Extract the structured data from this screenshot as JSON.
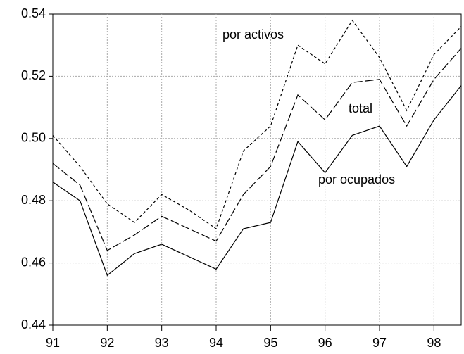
{
  "chart_data": {
    "type": "line",
    "x": [
      91,
      91.5,
      92,
      92.5,
      93,
      93.5,
      94,
      94.5,
      95,
      95.5,
      96,
      96.5,
      97,
      97.5,
      98,
      98.5
    ],
    "series": [
      {
        "name": "por activos",
        "color": "#000000",
        "dash": "4,3",
        "values": [
          0.501,
          0.491,
          0.479,
          0.473,
          0.482,
          0.477,
          0.471,
          0.496,
          0.504,
          0.53,
          0.524,
          0.538,
          0.526,
          0.509,
          0.527,
          0.536
        ]
      },
      {
        "name": "total",
        "color": "#000000",
        "dash": "12,4",
        "values": [
          0.492,
          0.485,
          0.464,
          0.469,
          0.475,
          0.471,
          0.467,
          0.482,
          0.491,
          0.514,
          0.506,
          0.518,
          0.519,
          0.504,
          0.519,
          0.529
        ]
      },
      {
        "name": "por ocupados",
        "color": "#000000",
        "dash": "none",
        "values": [
          0.486,
          0.48,
          0.456,
          0.463,
          0.466,
          0.462,
          0.458,
          0.471,
          0.473,
          0.499,
          0.489,
          0.501,
          0.504,
          0.491,
          0.506,
          0.517
        ]
      }
    ],
    "xlim": [
      91,
      98.5
    ],
    "xticks": [
      91,
      92,
      93,
      94,
      95,
      96,
      97,
      98
    ],
    "ylim": [
      0.44,
      0.54
    ],
    "yticks": [
      {
        "value": 0.44,
        "label": "0.44"
      },
      {
        "value": 0.46,
        "label": "0.46"
      },
      {
        "value": 0.48,
        "label": "0.48"
      },
      {
        "value": 0.5,
        "label": "0.50"
      },
      {
        "value": 0.52,
        "label": "0.52"
      },
      {
        "value": 0.54,
        "label": "0.54"
      }
    ],
    "grid": true
  }
}
